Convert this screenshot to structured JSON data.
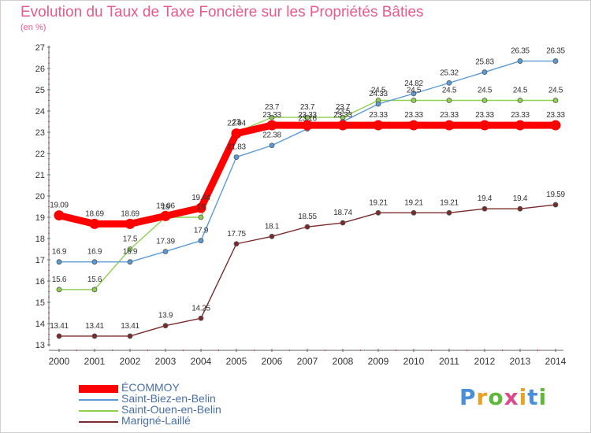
{
  "chart_data": {
    "type": "line",
    "title": "Evolution du Taux de Taxe Foncière sur les Propriétés Bâties",
    "subtitle": "(en %)",
    "xlabel": "",
    "ylabel": "(en %)",
    "ylim": [
      13,
      27
    ],
    "grid": false,
    "legend_position": "bottom-left",
    "x": [
      2000,
      2001,
      2002,
      2003,
      2004,
      2005,
      2006,
      2007,
      2008,
      2009,
      2010,
      2011,
      2012,
      2013,
      2014
    ],
    "x_tick_labels": [
      "2000",
      "2001",
      "2002",
      "2003",
      "2004",
      "2005",
      "2006",
      "2007",
      "2008",
      "2009",
      "2010",
      "2011",
      "2012",
      "2013",
      "2014"
    ],
    "y_tick_labels": [
      "13",
      "14",
      "15",
      "16",
      "17",
      "18",
      "19",
      "20",
      "21",
      "22",
      "23",
      "24",
      "25",
      "26",
      "27"
    ],
    "series": [
      {
        "name": "ÉCOMMOY",
        "color": "#ff0000",
        "values": [
          19.09,
          18.69,
          18.69,
          19.06,
          19.44,
          22.94,
          23.33,
          23.33,
          23.33,
          23.33,
          23.33,
          23.33,
          23.33,
          23.33,
          23.33
        ],
        "labels": [
          "19.09",
          "18.69",
          "18.69",
          "19.06",
          "19.44",
          "22.94",
          "23.33",
          "23.33",
          "23.33",
          "23.33",
          "23.33",
          "23.33",
          "23.33",
          "23.33",
          "23.33"
        ]
      },
      {
        "name": "Saint-Biez-en-Belin",
        "color": "#5b9bd5",
        "values": [
          16.9,
          16.9,
          16.9,
          17.39,
          17.9,
          21.83,
          22.38,
          23.16,
          23.5,
          24.33,
          24.82,
          25.32,
          25.83,
          26.35,
          26.35
        ],
        "labels": [
          "16.9",
          "16.9",
          "16.9",
          "17.39",
          "17.9",
          "21.83",
          "22.38",
          "23.16",
          "23.5",
          "24.33",
          "24.82",
          "25.32",
          "25.83",
          "26.35",
          "26.35"
        ]
      },
      {
        "name": "Saint-Ouen-en-Belin",
        "color": "#8fd14f",
        "values": [
          15.6,
          15.6,
          17.5,
          19.0,
          19.0,
          23.0,
          23.7,
          23.7,
          23.7,
          24.5,
          24.5,
          24.5,
          24.5,
          24.5,
          24.5
        ],
        "labels": [
          "15.6",
          "15.6",
          "17.5",
          "19",
          "19",
          "23",
          "23.7",
          "23.7",
          "23.7",
          "24.5",
          "24.5",
          "24.5",
          "24.5",
          "24.5",
          "24.5"
        ]
      },
      {
        "name": "Marigné-Laillé",
        "color": "#7a2a2a",
        "values": [
          13.41,
          13.41,
          13.41,
          13.9,
          14.25,
          17.75,
          18.1,
          18.55,
          18.74,
          19.21,
          19.21,
          19.21,
          19.4,
          19.4,
          19.59
        ],
        "labels": [
          "13.41",
          "13.41",
          "13.41",
          "13.9",
          "14.25",
          "17.75",
          "18.1",
          "18.55",
          "18.74",
          "19.21",
          "19.21",
          "19.21",
          "19.4",
          "19.4",
          "19.59"
        ]
      }
    ]
  },
  "brand": {
    "letters": [
      "P",
      "r",
      "o",
      "x",
      "i",
      "t",
      "i"
    ],
    "colors": [
      "#4a90d9",
      "#f0a020",
      "#5fb83a",
      "#d84a8a",
      "#f0a020",
      "#4a90d9",
      "#5fb83a"
    ]
  }
}
